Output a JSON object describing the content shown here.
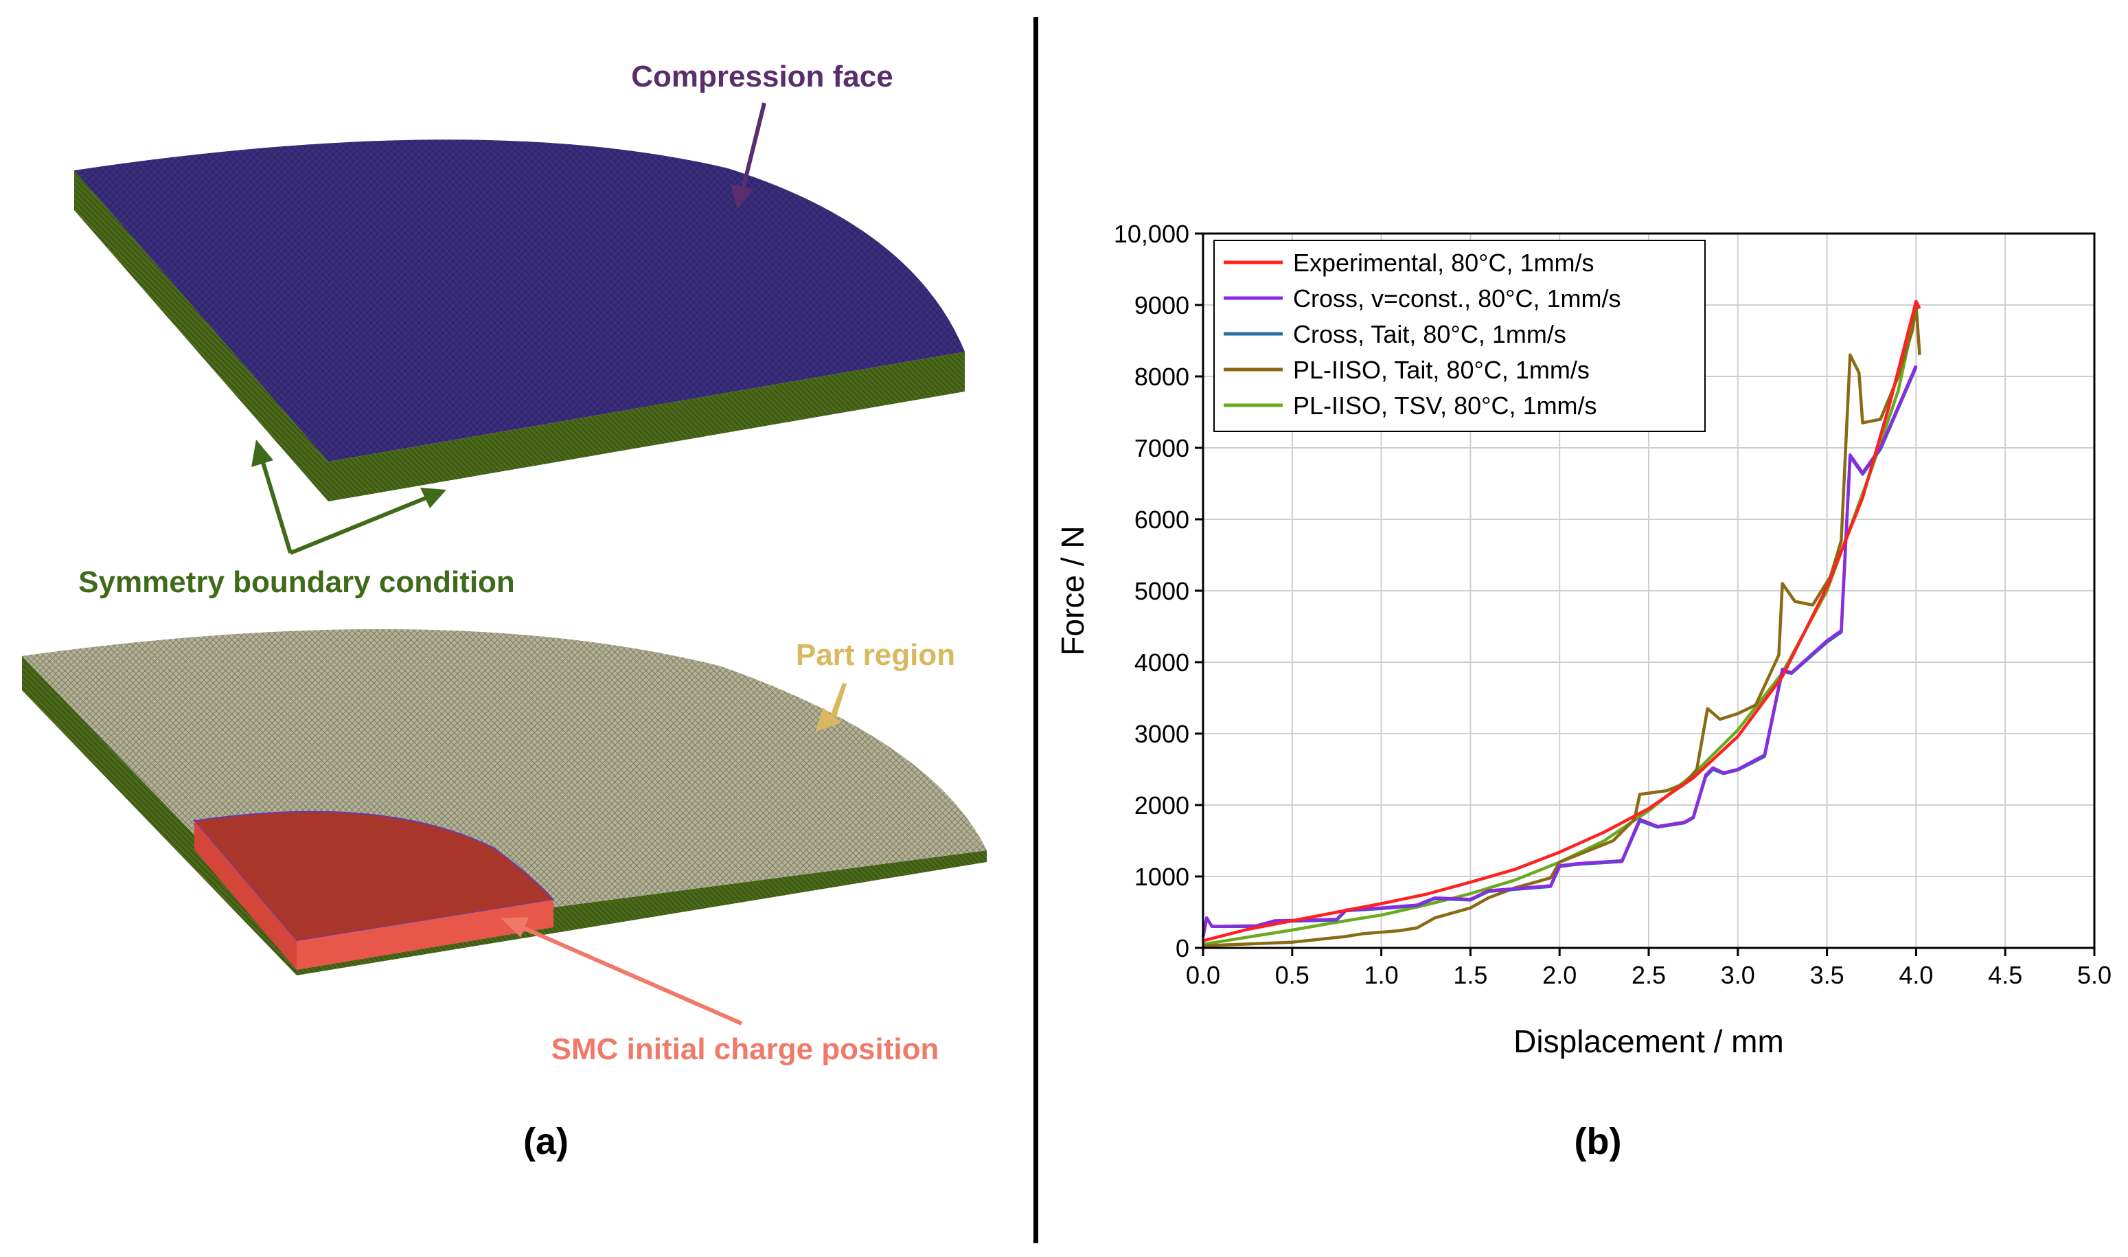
{
  "panel_a": {
    "label": "(a)",
    "annotations": {
      "compression_face": "Compression face",
      "symmetry_bc": "Symmetry boundary condition",
      "part_region": "Part region",
      "smc_charge": "SMC initial charge position"
    },
    "colors": {
      "compression_face": "#3b2e7e",
      "side_wall": "#4a6a1a",
      "part_mesh": "#b3b196",
      "charge_top": "#a8362a",
      "charge_side": "#e8584a",
      "label_compression": "#5a2d6e",
      "label_symmetry": "#3f6a1a",
      "label_part": "#d9b860",
      "label_charge": "#f07a6a"
    }
  },
  "panel_b": {
    "label": "(b)"
  },
  "chart_data": {
    "type": "line",
    "xlabel": "Displacement / mm",
    "ylabel": "Force / N",
    "xlim": [
      0,
      5.0
    ],
    "ylim": [
      0,
      10000
    ],
    "xticks": [
      "0.0",
      "0.5",
      "1.0",
      "1.5",
      "2.0",
      "2.5",
      "3.0",
      "3.5",
      "4.0",
      "4.5",
      "5.0"
    ],
    "yticks": [
      "0",
      "1000",
      "2000",
      "3000",
      "4000",
      "5000",
      "6000",
      "7000",
      "8000",
      "9000",
      "10,000"
    ],
    "grid": true,
    "legend_position": "top-left",
    "series": [
      {
        "name": "Experimental, 80°C, 1mm/s",
        "color": "#ff2020",
        "points": [
          [
            0,
            100
          ],
          [
            0.25,
            260
          ],
          [
            0.5,
            380
          ],
          [
            0.75,
            500
          ],
          [
            1.0,
            620
          ],
          [
            1.25,
            750
          ],
          [
            1.5,
            920
          ],
          [
            1.75,
            1100
          ],
          [
            2.0,
            1340
          ],
          [
            2.25,
            1620
          ],
          [
            2.5,
            1950
          ],
          [
            2.75,
            2380
          ],
          [
            3.0,
            2960
          ],
          [
            3.25,
            3800
          ],
          [
            3.5,
            5050
          ],
          [
            3.7,
            6300
          ],
          [
            3.85,
            7600
          ],
          [
            4.0,
            9050
          ],
          [
            4.02,
            8950
          ]
        ]
      },
      {
        "name": "Cross, v=const., 80°C, 1mm/s",
        "color": "#8a2be2",
        "points": [
          [
            0,
            150
          ],
          [
            0.02,
            420
          ],
          [
            0.05,
            300
          ],
          [
            0.3,
            310
          ],
          [
            0.4,
            380
          ],
          [
            0.6,
            390
          ],
          [
            0.75,
            400
          ],
          [
            0.8,
            530
          ],
          [
            1.0,
            560
          ],
          [
            1.2,
            600
          ],
          [
            1.3,
            700
          ],
          [
            1.5,
            680
          ],
          [
            1.6,
            800
          ],
          [
            1.75,
            830
          ],
          [
            1.95,
            870
          ],
          [
            2.0,
            1150
          ],
          [
            2.1,
            1180
          ],
          [
            2.35,
            1220
          ],
          [
            2.45,
            1800
          ],
          [
            2.55,
            1700
          ],
          [
            2.7,
            1760
          ],
          [
            2.75,
            1830
          ],
          [
            2.82,
            2420
          ],
          [
            2.86,
            2520
          ],
          [
            2.92,
            2450
          ],
          [
            3.0,
            2500
          ],
          [
            3.15,
            2700
          ],
          [
            3.25,
            3900
          ],
          [
            3.3,
            3850
          ],
          [
            3.5,
            4300
          ],
          [
            3.58,
            4440
          ],
          [
            3.63,
            6900
          ],
          [
            3.7,
            6650
          ],
          [
            3.8,
            7000
          ],
          [
            4.0,
            8150
          ]
        ]
      },
      {
        "name": "Cross, Tait, 80°C, 1mm/s",
        "color": "#2a6ea0",
        "points": [
          [
            0,
            150
          ],
          [
            0.02,
            420
          ],
          [
            0.05,
            300
          ],
          [
            0.3,
            300
          ],
          [
            0.4,
            370
          ],
          [
            0.6,
            380
          ],
          [
            0.75,
            390
          ],
          [
            0.8,
            520
          ],
          [
            1.0,
            550
          ],
          [
            1.2,
            590
          ],
          [
            1.3,
            690
          ],
          [
            1.5,
            670
          ],
          [
            1.6,
            790
          ],
          [
            1.75,
            820
          ],
          [
            1.95,
            860
          ],
          [
            2.0,
            1140
          ],
          [
            2.1,
            1170
          ],
          [
            2.35,
            1210
          ],
          [
            2.45,
            1780
          ],
          [
            2.55,
            1690
          ],
          [
            2.7,
            1750
          ],
          [
            2.75,
            1820
          ],
          [
            2.82,
            2400
          ],
          [
            2.86,
            2500
          ],
          [
            2.92,
            2440
          ],
          [
            3.0,
            2490
          ],
          [
            3.15,
            2680
          ],
          [
            3.25,
            3880
          ],
          [
            3.3,
            3840
          ],
          [
            3.5,
            4280
          ],
          [
            3.58,
            4420
          ],
          [
            3.63,
            6880
          ],
          [
            3.7,
            6630
          ],
          [
            3.8,
            6980
          ],
          [
            4.0,
            8130
          ]
        ]
      },
      {
        "name": "PL-IISO, Tait, 80°C, 1mm/s",
        "color": "#8b6a14",
        "points": [
          [
            0,
            30
          ],
          [
            0.5,
            80
          ],
          [
            0.8,
            160
          ],
          [
            0.9,
            200
          ],
          [
            1.1,
            240
          ],
          [
            1.2,
            280
          ],
          [
            1.3,
            420
          ],
          [
            1.5,
            560
          ],
          [
            1.6,
            700
          ],
          [
            1.75,
            840
          ],
          [
            1.95,
            980
          ],
          [
            2.0,
            1200
          ],
          [
            2.3,
            1500
          ],
          [
            2.42,
            1800
          ],
          [
            2.45,
            2150
          ],
          [
            2.6,
            2200
          ],
          [
            2.7,
            2300
          ],
          [
            2.77,
            2500
          ],
          [
            2.83,
            3350
          ],
          [
            2.9,
            3200
          ],
          [
            3.0,
            3280
          ],
          [
            3.1,
            3400
          ],
          [
            3.23,
            4100
          ],
          [
            3.25,
            5100
          ],
          [
            3.32,
            4850
          ],
          [
            3.42,
            4800
          ],
          [
            3.52,
            5200
          ],
          [
            3.58,
            5700
          ],
          [
            3.63,
            8300
          ],
          [
            3.68,
            8050
          ],
          [
            3.7,
            7350
          ],
          [
            3.8,
            7400
          ],
          [
            3.9,
            8000
          ],
          [
            3.98,
            8650
          ],
          [
            4.0,
            9000
          ],
          [
            4.02,
            8300
          ]
        ]
      },
      {
        "name": "PL-IISO, TSV, 80°C, 1mm/s",
        "color": "#6aaa1e",
        "points": [
          [
            0,
            50
          ],
          [
            0.25,
            150
          ],
          [
            0.5,
            250
          ],
          [
            0.75,
            360
          ],
          [
            1.0,
            460
          ],
          [
            1.25,
            600
          ],
          [
            1.5,
            760
          ],
          [
            1.75,
            950
          ],
          [
            2.0,
            1200
          ],
          [
            2.25,
            1500
          ],
          [
            2.5,
            1920
          ],
          [
            2.75,
            2430
          ],
          [
            3.0,
            3050
          ],
          [
            3.25,
            3850
          ],
          [
            3.5,
            5000
          ],
          [
            3.75,
            6700
          ],
          [
            3.9,
            7800
          ],
          [
            4.0,
            8950
          ]
        ]
      }
    ]
  }
}
